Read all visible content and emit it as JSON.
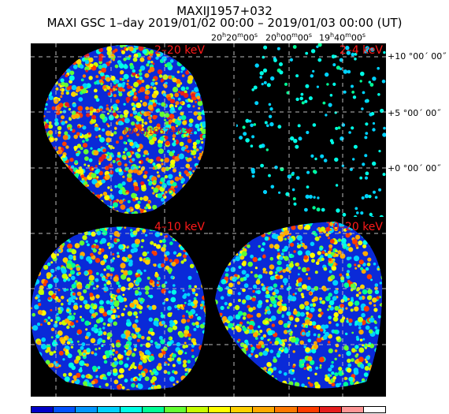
{
  "title": "MAXIJ1957+032",
  "subtitle": "MAXI GSC 1–day 2019/01/02 00:00 – 2019/01/03 00:00 (UT)",
  "ra_labels": [
    {
      "h": "20",
      "m": "20",
      "s": "00"
    },
    {
      "h": "20",
      "m": "00",
      "s": "00"
    },
    {
      "h": "19",
      "m": "40",
      "s": "00"
    }
  ],
  "dec_labels": [
    "+10 °00´ 00˝",
    "+5 °00´ 00˝",
    "+0 °00´ 00˝"
  ],
  "panels": [
    {
      "band": "2–20 keV",
      "source_name": "MAXIJ1957+032"
    },
    {
      "band": "2–4 keV"
    },
    {
      "band": "4–10 keV"
    },
    {
      "band": "10–20 keV"
    }
  ],
  "colors": {
    "colorbar": [
      "#0000c8",
      "#0050ff",
      "#0096ff",
      "#00d2ff",
      "#00ffe6",
      "#00ff96",
      "#64ff32",
      "#c8ff00",
      "#ffff00",
      "#ffd200",
      "#ffaa00",
      "#ff7800",
      "#ff3c00",
      "#e61e1e",
      "#ff9696",
      "#ffffff"
    ]
  }
}
